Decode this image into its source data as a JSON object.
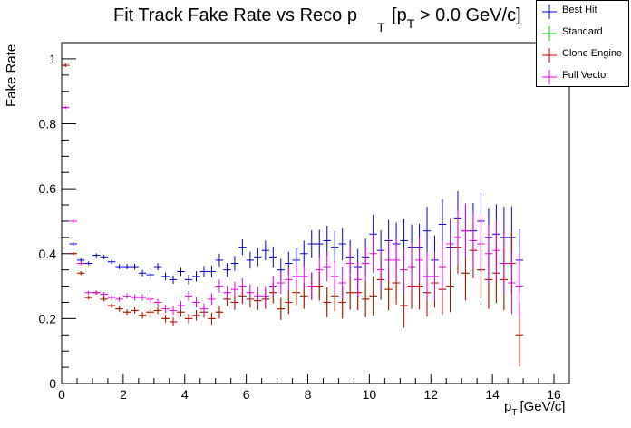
{
  "title": {
    "part1": "Fit Track Fake Rate vs Reco p",
    "sub1": "T",
    "part2": "[p",
    "sub2": "T",
    "part3": " > 0.0 GeV/c]"
  },
  "axes": {
    "ylabel": "Fake Rate",
    "xlabel_main": "p",
    "xlabel_sub": "T",
    "xlabel_unit": "[GeV/c]"
  },
  "colors": {
    "best_hit": "#0000cc",
    "standard": "#00cc00",
    "clone_engine": "#cc0000",
    "full_vector": "#e600e6"
  },
  "legend": {
    "placement": "top-right",
    "entries": [
      {
        "key": "best_hit",
        "label": "Best Hit"
      },
      {
        "key": "standard",
        "label": "Standard"
      },
      {
        "key": "clone_engine",
        "label": "Clone Engine"
      },
      {
        "key": "full_vector",
        "label": "Full Vector"
      }
    ]
  },
  "chart_data": {
    "type": "scatter",
    "title": "Fit Track Fake Rate vs Reco pT [pT > 0.0 GeV/c]",
    "xlabel": "pT [GeV/c]",
    "ylabel": "Fake Rate",
    "xlim": [
      0,
      16.5
    ],
    "ylim": [
      0,
      1.05
    ],
    "x_ticks": [
      0,
      2,
      4,
      6,
      8,
      10,
      12,
      14,
      16
    ],
    "y_ticks": [
      0,
      0.2,
      0.4,
      0.6,
      0.8,
      1
    ],
    "x_tick_labels": [
      "0",
      "2",
      "4",
      "6",
      "8",
      "10",
      "12",
      "14",
      "16"
    ],
    "y_tick_labels": [
      "0",
      "0.2",
      "0.4",
      "0.6",
      "0.8",
      "1"
    ],
    "bin_half_width": 0.125,
    "x": [
      0.125,
      0.375,
      0.625,
      0.875,
      1.125,
      1.375,
      1.625,
      1.875,
      2.125,
      2.375,
      2.625,
      2.875,
      3.125,
      3.375,
      3.625,
      3.875,
      4.125,
      4.375,
      4.625,
      4.875,
      5.125,
      5.375,
      5.625,
      5.875,
      6.125,
      6.375,
      6.625,
      6.875,
      7.125,
      7.375,
      7.625,
      7.875,
      8.125,
      8.375,
      8.625,
      8.875,
      9.125,
      9.375,
      9.625,
      9.875,
      10.125,
      10.375,
      10.625,
      10.875,
      11.125,
      11.375,
      11.625,
      11.875,
      12.125,
      12.375,
      12.625,
      12.875,
      13.125,
      13.375,
      13.625,
      13.875,
      14.125,
      14.375,
      14.625,
      14.875
    ],
    "series": [
      {
        "name": "Best Hit",
        "key": "best_hit",
        "values": [
          0.98,
          0.43,
          0.38,
          0.37,
          0.395,
          0.39,
          0.375,
          0.36,
          0.36,
          0.36,
          0.34,
          0.335,
          0.36,
          0.33,
          0.32,
          0.345,
          0.32,
          0.33,
          0.345,
          0.345,
          0.38,
          0.35,
          0.37,
          0.42,
          0.38,
          0.39,
          0.41,
          0.39,
          0.35,
          0.37,
          0.38,
          0.4,
          0.43,
          0.43,
          0.44,
          0.42,
          0.43,
          0.39,
          0.36,
          0.39,
          0.46,
          0.41,
          0.44,
          0.43,
          0.44,
          0.42,
          0.42,
          0.47,
          0.38,
          0.49,
          0.42,
          0.51,
          0.47,
          0.47,
          0.5,
          0.45,
          0.46,
          0.45,
          0.45,
          0.38
        ],
        "errors": [
          0.005,
          0.005,
          0.006,
          0.006,
          0.006,
          0.007,
          0.007,
          0.008,
          0.008,
          0.009,
          0.01,
          0.01,
          0.011,
          0.012,
          0.013,
          0.014,
          0.015,
          0.016,
          0.017,
          0.018,
          0.02,
          0.021,
          0.023,
          0.024,
          0.026,
          0.028,
          0.03,
          0.032,
          0.034,
          0.036,
          0.038,
          0.04,
          0.042,
          0.044,
          0.046,
          0.048,
          0.05,
          0.052,
          0.054,
          0.056,
          0.06,
          0.062,
          0.064,
          0.066,
          0.068,
          0.07,
          0.072,
          0.074,
          0.076,
          0.078,
          0.08,
          0.082,
          0.084,
          0.086,
          0.088,
          0.09,
          0.092,
          0.094,
          0.096,
          0.098
        ]
      },
      {
        "name": "Standard",
        "key": "standard",
        "values": [
          0.98,
          0.4,
          0.34,
          0.265,
          0.28,
          0.26,
          0.24,
          0.23,
          0.22,
          0.225,
          0.21,
          0.22,
          0.225,
          0.2,
          0.19,
          0.22,
          0.2,
          0.21,
          0.22,
          0.2,
          0.22,
          0.26,
          0.25,
          0.27,
          0.26,
          0.255,
          0.26,
          0.28,
          0.23,
          0.25,
          0.28,
          0.27,
          0.3,
          0.3,
          0.25,
          0.27,
          0.25,
          0.28,
          0.28,
          0.26,
          0.27,
          0.32,
          0.29,
          0.31,
          0.24,
          0.3,
          0.3,
          0.28,
          0.31,
          0.29,
          0.3,
          0.42,
          0.34,
          0.41,
          0.35,
          0.32,
          0.34,
          0.32,
          0.37,
          0.15
        ],
        "errors": [
          0.005,
          0.005,
          0.006,
          0.006,
          0.006,
          0.007,
          0.007,
          0.008,
          0.008,
          0.009,
          0.01,
          0.01,
          0.011,
          0.012,
          0.013,
          0.014,
          0.015,
          0.016,
          0.017,
          0.018,
          0.02,
          0.021,
          0.023,
          0.024,
          0.026,
          0.028,
          0.03,
          0.032,
          0.034,
          0.036,
          0.038,
          0.04,
          0.042,
          0.044,
          0.046,
          0.048,
          0.05,
          0.052,
          0.054,
          0.056,
          0.06,
          0.062,
          0.064,
          0.066,
          0.068,
          0.07,
          0.072,
          0.074,
          0.076,
          0.078,
          0.08,
          0.082,
          0.084,
          0.086,
          0.088,
          0.09,
          0.092,
          0.094,
          0.096,
          0.098
        ]
      },
      {
        "name": "Clone Engine",
        "key": "clone_engine",
        "values": [
          0.98,
          0.4,
          0.34,
          0.265,
          0.28,
          0.26,
          0.24,
          0.23,
          0.22,
          0.225,
          0.21,
          0.22,
          0.225,
          0.2,
          0.19,
          0.22,
          0.2,
          0.21,
          0.22,
          0.2,
          0.22,
          0.26,
          0.25,
          0.27,
          0.26,
          0.255,
          0.26,
          0.28,
          0.23,
          0.25,
          0.28,
          0.27,
          0.3,
          0.3,
          0.25,
          0.27,
          0.25,
          0.28,
          0.28,
          0.26,
          0.27,
          0.32,
          0.29,
          0.31,
          0.24,
          0.3,
          0.3,
          0.28,
          0.31,
          0.29,
          0.3,
          0.42,
          0.34,
          0.41,
          0.35,
          0.32,
          0.34,
          0.32,
          0.37,
          0.15
        ],
        "errors": [
          0.005,
          0.005,
          0.006,
          0.006,
          0.006,
          0.007,
          0.007,
          0.008,
          0.008,
          0.009,
          0.01,
          0.01,
          0.011,
          0.012,
          0.013,
          0.014,
          0.015,
          0.016,
          0.017,
          0.018,
          0.02,
          0.021,
          0.023,
          0.024,
          0.026,
          0.028,
          0.03,
          0.032,
          0.034,
          0.036,
          0.038,
          0.04,
          0.042,
          0.044,
          0.046,
          0.048,
          0.05,
          0.052,
          0.054,
          0.056,
          0.06,
          0.062,
          0.064,
          0.066,
          0.068,
          0.07,
          0.072,
          0.074,
          0.076,
          0.078,
          0.08,
          0.082,
          0.084,
          0.086,
          0.088,
          0.09,
          0.092,
          0.094,
          0.096,
          0.098
        ]
      },
      {
        "name": "Full Vector",
        "key": "full_vector",
        "values": [
          0.85,
          0.5,
          0.37,
          0.28,
          0.28,
          0.275,
          0.265,
          0.26,
          0.27,
          0.265,
          0.265,
          0.26,
          0.25,
          0.23,
          0.225,
          0.24,
          0.27,
          0.25,
          0.23,
          0.26,
          0.3,
          0.28,
          0.29,
          0.3,
          0.28,
          0.27,
          0.27,
          0.3,
          0.31,
          0.32,
          0.33,
          0.33,
          0.3,
          0.35,
          0.36,
          0.33,
          0.31,
          0.37,
          0.32,
          0.37,
          0.4,
          0.35,
          0.38,
          0.38,
          0.35,
          0.36,
          0.38,
          0.33,
          0.33,
          0.36,
          0.43,
          0.45,
          0.47,
          0.44,
          0.43,
          0.4,
          0.41,
          0.37,
          0.31,
          0.3
        ],
        "errors": [
          0.005,
          0.005,
          0.006,
          0.006,
          0.006,
          0.007,
          0.007,
          0.008,
          0.008,
          0.009,
          0.01,
          0.01,
          0.011,
          0.012,
          0.013,
          0.014,
          0.015,
          0.016,
          0.017,
          0.018,
          0.02,
          0.021,
          0.023,
          0.024,
          0.026,
          0.028,
          0.03,
          0.032,
          0.034,
          0.036,
          0.038,
          0.04,
          0.042,
          0.044,
          0.046,
          0.048,
          0.05,
          0.052,
          0.054,
          0.056,
          0.06,
          0.062,
          0.064,
          0.066,
          0.068,
          0.07,
          0.072,
          0.074,
          0.076,
          0.078,
          0.08,
          0.082,
          0.084,
          0.086,
          0.088,
          0.09,
          0.092,
          0.094,
          0.096,
          0.098
        ]
      }
    ]
  }
}
